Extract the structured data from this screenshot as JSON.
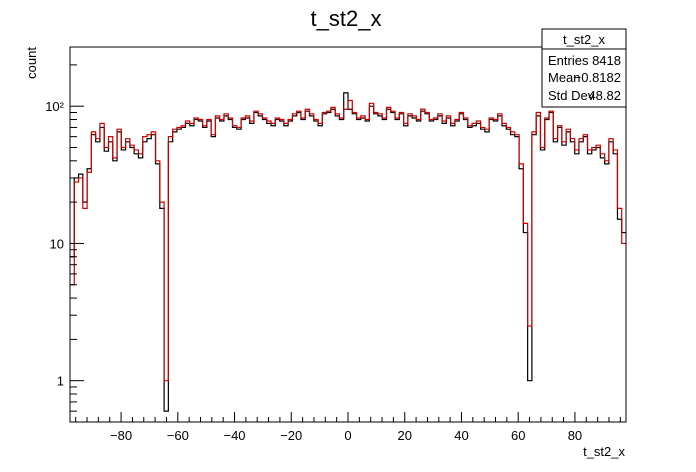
{
  "chart_data": {
    "type": "line",
    "title": "t_st2_x",
    "xlabel": "t_st2_x",
    "ylabel": "count",
    "xlim": [
      -98,
      98
    ],
    "ylim": [
      0.5,
      270
    ],
    "yscale": "log",
    "grid": false,
    "x_ticks": [
      -80,
      -60,
      -40,
      -20,
      0,
      20,
      40,
      60,
      80
    ],
    "y_ticks": [
      1,
      10,
      100
    ],
    "y_tick_labels": [
      "1",
      "10",
      "10²"
    ],
    "bin_width": 1.96,
    "series": [
      {
        "color": "#000000",
        "values": [
          8,
          30,
          32,
          20,
          35,
          62,
          55,
          70,
          47,
          55,
          40,
          65,
          48,
          55,
          50,
          45,
          42,
          55,
          58,
          62,
          38,
          18,
          0.6,
          55,
          65,
          68,
          70,
          75,
          72,
          80,
          78,
          70,
          78,
          60,
          82,
          78,
          85,
          80,
          70,
          68,
          80,
          82,
          75,
          90,
          85,
          80,
          75,
          72,
          80,
          78,
          72,
          78,
          85,
          90,
          80,
          92,
          85,
          78,
          72,
          88,
          90,
          95,
          85,
          80,
          125,
          95,
          88,
          80,
          82,
          78,
          100,
          88,
          85,
          80,
          95,
          90,
          80,
          88,
          72,
          85,
          82,
          78,
          92,
          88,
          78,
          80,
          85,
          75,
          82,
          72,
          78,
          88,
          80,
          70,
          72,
          75,
          68,
          65,
          80,
          78,
          85,
          72,
          68,
          62,
          60,
          35,
          12,
          1.0,
          62,
          85,
          48,
          80,
          90,
          55,
          70,
          52,
          65,
          55,
          45,
          55,
          60,
          45,
          48,
          50,
          42,
          38,
          55,
          45,
          15,
          12
        ]
      },
      {
        "color": "#cc0000",
        "values": [
          5,
          28,
          30,
          18,
          33,
          65,
          58,
          75,
          50,
          60,
          42,
          68,
          50,
          58,
          52,
          48,
          45,
          60,
          62,
          65,
          40,
          20,
          1.0,
          60,
          68,
          70,
          72,
          78,
          75,
          82,
          80,
          72,
          80,
          62,
          85,
          80,
          88,
          82,
          72,
          70,
          82,
          85,
          78,
          92,
          88,
          82,
          78,
          75,
          82,
          80,
          75,
          80,
          88,
          92,
          82,
          95,
          88,
          80,
          75,
          90,
          92,
          98,
          88,
          82,
          95,
          110,
          90,
          82,
          85,
          80,
          105,
          90,
          88,
          82,
          98,
          92,
          82,
          90,
          75,
          88,
          85,
          80,
          95,
          90,
          80,
          82,
          88,
          78,
          85,
          75,
          80,
          90,
          82,
          72,
          75,
          78,
          70,
          68,
          82,
          80,
          88,
          75,
          70,
          65,
          62,
          38,
          14,
          2.5,
          65,
          90,
          50,
          82,
          92,
          58,
          72,
          55,
          68,
          58,
          48,
          58,
          62,
          48,
          50,
          52,
          45,
          40,
          58,
          48,
          18,
          10
        ]
      }
    ]
  },
  "stats": {
    "name": "t_st2_x",
    "rows": [
      {
        "label": "Entries",
        "value": "8418"
      },
      {
        "label": "Mean",
        "value": "−0.8182"
      },
      {
        "label": "Std Dev",
        "value": "48.82"
      }
    ]
  }
}
